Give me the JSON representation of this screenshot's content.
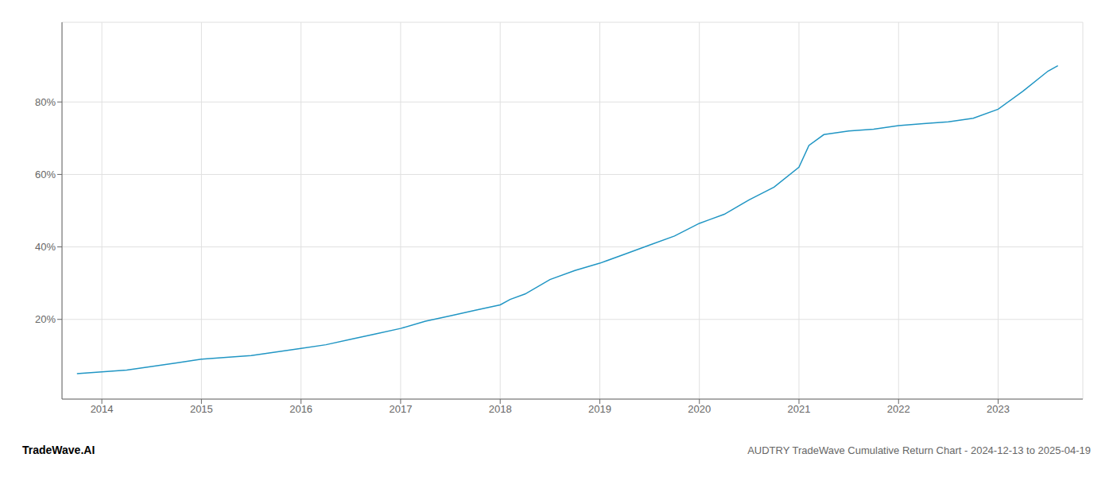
{
  "chart_data": {
    "type": "line",
    "title": "AUDTRY TradeWave Cumulative Return Chart - 2024-12-13 to 2025-04-19",
    "annotations": [
      "TradeWave.AI"
    ],
    "x": [
      2013.75,
      2014.0,
      2014.25,
      2014.5,
      2014.75,
      2015.0,
      2015.25,
      2015.5,
      2015.75,
      2016.0,
      2016.25,
      2016.5,
      2016.75,
      2017.0,
      2017.25,
      2017.5,
      2017.75,
      2018.0,
      2018.1,
      2018.25,
      2018.5,
      2018.75,
      2019.0,
      2019.25,
      2019.5,
      2019.75,
      2020.0,
      2020.1,
      2020.25,
      2020.5,
      2020.75,
      2021.0,
      2021.1,
      2021.25,
      2021.5,
      2021.75,
      2022.0,
      2022.25,
      2022.5,
      2022.75,
      2023.0,
      2023.25,
      2023.5,
      2023.6
    ],
    "values": [
      5.0,
      5.5,
      6.0,
      7.0,
      8.0,
      9.0,
      9.5,
      10.0,
      11.0,
      12.0,
      13.0,
      14.5,
      16.0,
      17.5,
      19.5,
      21.0,
      22.5,
      24.0,
      25.5,
      27.0,
      31.0,
      33.5,
      35.5,
      38.0,
      40.5,
      43.0,
      46.5,
      47.5,
      49.0,
      53.0,
      56.5,
      62.0,
      68.0,
      71.0,
      72.0,
      72.5,
      73.5,
      74.0,
      74.5,
      75.5,
      78.0,
      83.0,
      88.5,
      90.0
    ],
    "color": "#2196c4",
    "xlim": [
      2013.6,
      2023.85
    ],
    "ylim": [
      -2,
      102
    ],
    "xticks": [
      2014,
      2015,
      2016,
      2017,
      2018,
      2019,
      2020,
      2021,
      2022,
      2023
    ],
    "yticks": [
      {
        "value": 20,
        "label": "20%"
      },
      {
        "value": 40,
        "label": "40%"
      },
      {
        "value": 60,
        "label": "60%"
      },
      {
        "value": 80,
        "label": "80%"
      }
    ],
    "grid": true
  }
}
